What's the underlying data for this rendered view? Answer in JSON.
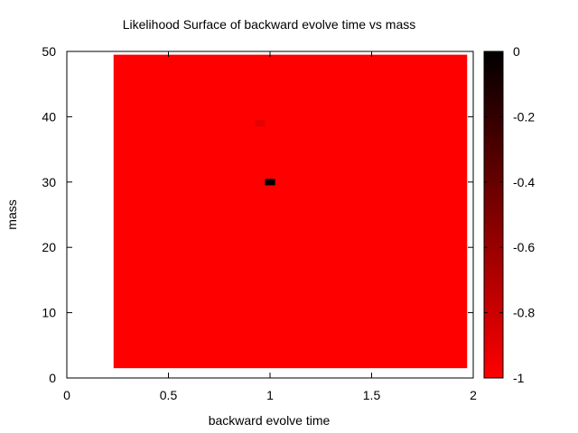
{
  "chart_data": {
    "type": "heatmap",
    "title": "Likelihood Surface of backward evolve time vs mass",
    "xlabel": "backward evolve time",
    "ylabel": "mass",
    "xlim": [
      0,
      2
    ],
    "ylim": [
      0,
      50
    ],
    "x_ticks": [
      {
        "value": 0,
        "label": "0"
      },
      {
        "value": 0.5,
        "label": "0.5"
      },
      {
        "value": 1,
        "label": "1"
      },
      {
        "value": 1.5,
        "label": "1.5"
      },
      {
        "value": 2,
        "label": "2"
      }
    ],
    "y_ticks": [
      {
        "value": 0,
        "label": "0"
      },
      {
        "value": 10,
        "label": "10"
      },
      {
        "value": 20,
        "label": "20"
      },
      {
        "value": 30,
        "label": "30"
      },
      {
        "value": 40,
        "label": "40"
      },
      {
        "value": 50,
        "label": "50"
      }
    ],
    "colorbar": {
      "range": [
        -1,
        0
      ],
      "low_color": "#ff0000",
      "high_color": "#000000",
      "ticks": [
        {
          "value": 0,
          "label": "0"
        },
        {
          "value": -0.2,
          "label": "-0.2"
        },
        {
          "value": -0.4,
          "label": "-0.4"
        },
        {
          "value": -0.6,
          "label": "-0.6"
        },
        {
          "value": -0.8,
          "label": "-0.8"
        },
        {
          "value": -1,
          "label": "-1"
        }
      ]
    },
    "background_region": {
      "x_range": [
        0.23,
        1.97
      ],
      "y_range": [
        1.5,
        49.5
      ],
      "value": -1
    },
    "cells": [
      {
        "x": 1.0,
        "y": 30,
        "dx": 0.05,
        "dy": 1.0,
        "value": 0
      },
      {
        "x": 0.95,
        "y": 39,
        "dx": 0.05,
        "dy": 1.0,
        "value": -0.9
      }
    ]
  }
}
